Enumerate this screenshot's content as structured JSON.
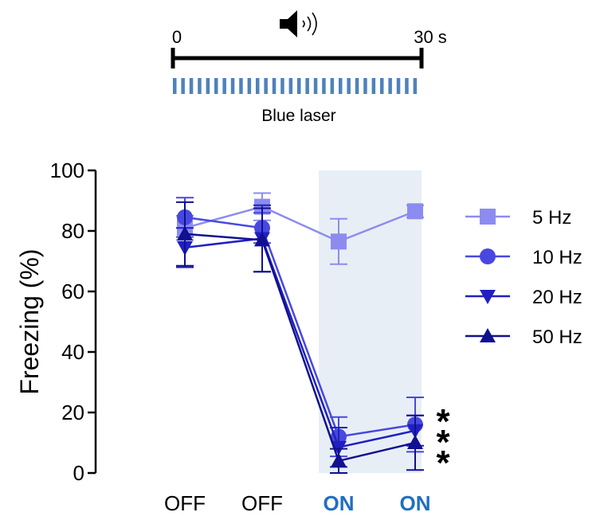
{
  "stimulus": {
    "time_start_label": "0",
    "time_end_label": "30 s",
    "icon": "speaker-icon",
    "laser_label": "Blue laser",
    "laser_color": "#4f81bd"
  },
  "chart_data": {
    "type": "line",
    "ylabel": "Freezing (%)",
    "ylim": [
      0,
      100
    ],
    "yticks": [
      "0",
      "20",
      "40",
      "60",
      "80",
      "100"
    ],
    "categories": [
      "OFF",
      "OFF",
      "ON",
      "ON"
    ],
    "category_colors": [
      "#000000",
      "#000000",
      "#1f6fc0",
      "#1f6fc0"
    ],
    "shaded_categories": [
      2,
      3
    ],
    "shade_color": "#e8eef6",
    "grid": false,
    "legend_position": "right",
    "series": [
      {
        "name": "5 Hz",
        "marker": "square",
        "color": "#8c8cf0",
        "values": [
          81,
          88,
          76.5,
          86.5
        ],
        "err": [
          4,
          4.5,
          7.5,
          2
        ]
      },
      {
        "name": "10 Hz",
        "marker": "circle",
        "color": "#4848e0",
        "values": [
          84.5,
          81,
          12,
          16
        ],
        "err": [
          6.5,
          5,
          6.5,
          9
        ]
      },
      {
        "name": "20 Hz",
        "marker": "triangle-down",
        "color": "#2020c0",
        "values": [
          74.5,
          77.5,
          8.5,
          14
        ],
        "err": [
          6.5,
          11,
          6.5,
          5
        ]
      },
      {
        "name": "50 Hz",
        "marker": "triangle-up",
        "color": "#101090",
        "values": [
          79,
          77,
          4,
          10
        ],
        "err": [
          10.5,
          10.5,
          4,
          9
        ]
      }
    ],
    "annotations": [
      "*",
      "*",
      "*"
    ]
  }
}
